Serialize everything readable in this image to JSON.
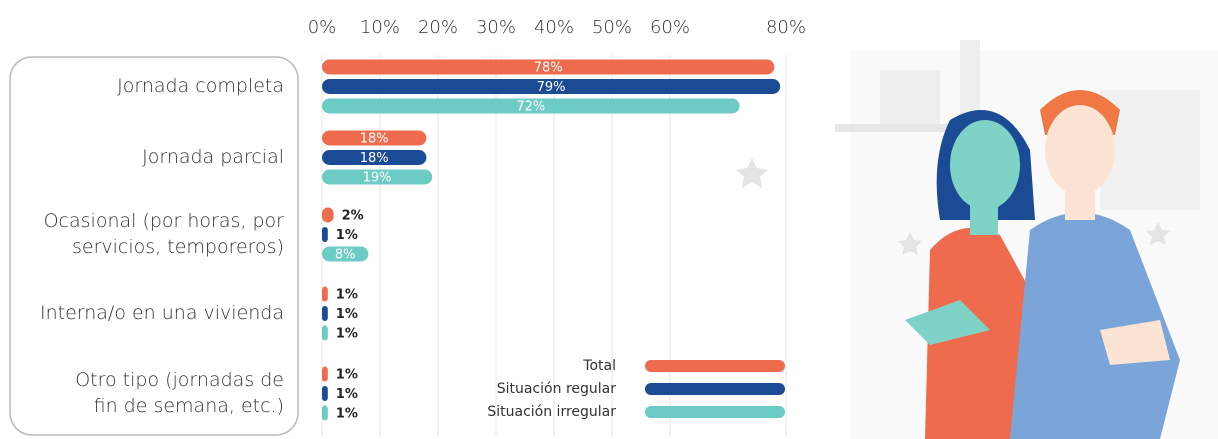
{
  "chart_data": {
    "type": "bar",
    "orientation": "horizontal",
    "categories": [
      [
        "Jornada completa"
      ],
      [
        "Jornada parcial"
      ],
      [
        "Ocasional (por horas, por",
        "servicios, temporeros)"
      ],
      [
        "Interna/o en una vivienda"
      ],
      [
        "Otro tipo (jornadas de",
        "fin de semana, etc.)"
      ]
    ],
    "series": [
      {
        "name": "Total",
        "color": "#ee6c4d",
        "values": [
          78,
          18,
          2,
          1,
          1
        ],
        "value_labels": [
          "78%",
          "18%",
          "2%",
          "1%",
          "1%"
        ]
      },
      {
        "name": "Situación regular",
        "color": "#1b4b94",
        "values": [
          79,
          18,
          1,
          1,
          1
        ],
        "value_labels": [
          "79%",
          "18%",
          "1%",
          "1%",
          "1%"
        ]
      },
      {
        "name": "Situación irregular",
        "color": "#6ccbc4",
        "values": [
          72,
          19,
          8,
          1,
          1
        ],
        "value_labels": [
          "72%",
          "19%",
          "8%",
          "1%",
          "1%"
        ]
      }
    ],
    "xlim": [
      0,
      80
    ],
    "xticks": [
      {
        "value": 0,
        "label": "0%"
      },
      {
        "value": 10,
        "label": "10%"
      },
      {
        "value": 20,
        "label": "20%"
      },
      {
        "value": 30,
        "label": "30%"
      },
      {
        "value": 40,
        "label": "40%"
      },
      {
        "value": 50,
        "label": "50%"
      },
      {
        "value": 60,
        "label": "60%"
      },
      {
        "value": 80,
        "label": "80%"
      }
    ],
    "grid": true,
    "legend": "lower right"
  }
}
